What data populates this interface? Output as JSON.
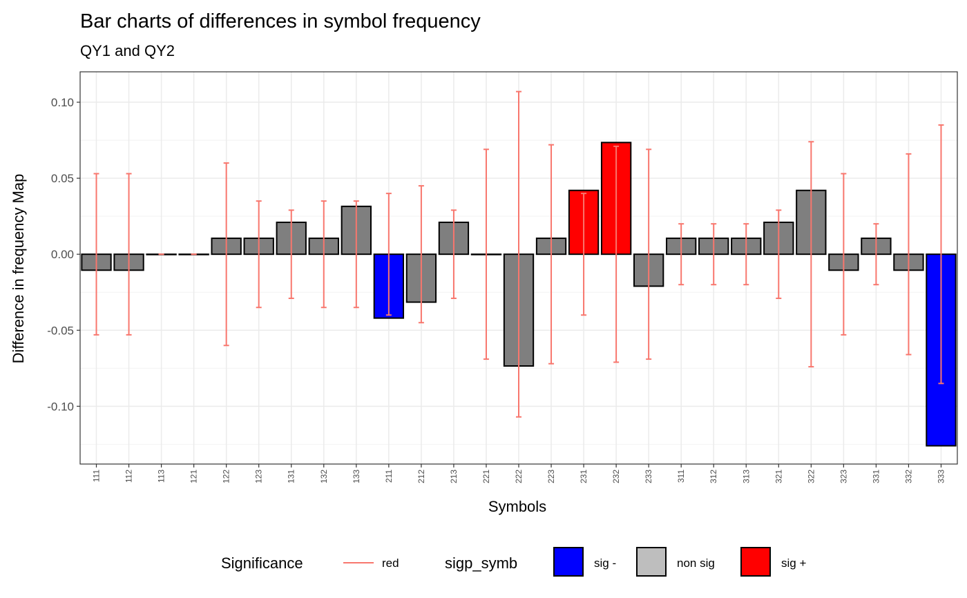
{
  "chart_data": {
    "type": "bar",
    "title": "Bar charts of differences in symbol frequency",
    "subtitle": "QY1 and QY2",
    "xlabel": "Symbols",
    "ylabel": "Difference in frequency Map",
    "ylim": [
      -0.138,
      0.12
    ],
    "yticks": [
      0.1,
      0.05,
      0.0,
      -0.05,
      -0.1
    ],
    "ytick_labels": [
      "0.10",
      "0.05",
      "0.00",
      "-0.05",
      "-0.10"
    ],
    "grid": true,
    "legend_position": "bottom",
    "categories": [
      "111",
      "112",
      "113",
      "121",
      "122",
      "123",
      "131",
      "132",
      "133",
      "211",
      "212",
      "213",
      "221",
      "222",
      "223",
      "231",
      "232",
      "233",
      "311",
      "312",
      "313",
      "321",
      "322",
      "323",
      "331",
      "332",
      "333"
    ],
    "values": [
      -0.0105,
      -0.0105,
      0.0,
      0.0,
      0.0105,
      0.0105,
      0.021,
      0.0105,
      0.0315,
      -0.042,
      -0.0315,
      0.021,
      0.0,
      -0.0735,
      0.0105,
      0.042,
      0.0735,
      -0.021,
      0.0105,
      0.0105,
      0.0105,
      0.021,
      0.042,
      -0.0105,
      0.0105,
      -0.0105,
      -0.126
    ],
    "error_half_width": [
      0.053,
      0.053,
      0.0,
      0.0,
      0.06,
      0.035,
      0.029,
      0.035,
      0.035,
      0.04,
      0.045,
      0.029,
      0.069,
      0.107,
      0.072,
      0.04,
      0.071,
      0.069,
      0.02,
      0.02,
      0.02,
      0.029,
      0.074,
      0.053,
      0.02,
      0.066,
      0.085
    ],
    "significance": [
      "non sig",
      "non sig",
      "non sig",
      "non sig",
      "non sig",
      "non sig",
      "non sig",
      "non sig",
      "non sig",
      "sig -",
      "non sig",
      "non sig",
      "non sig",
      "non sig",
      "non sig",
      "sig +",
      "sig +",
      "non sig",
      "non sig",
      "non sig",
      "non sig",
      "non sig",
      "non sig",
      "non sig",
      "non sig",
      "non sig",
      "sig -"
    ],
    "legend": {
      "significance_title": "Significance",
      "significance_label": "red",
      "fill_title": "sigp_symb",
      "fill_items": [
        {
          "label": "sig -",
          "color": "#0000ff"
        },
        {
          "label": "non sig",
          "color": "#bebebe"
        },
        {
          "label": "sig +",
          "color": "#ff0000"
        }
      ]
    },
    "colors": {
      "sig -": "#0000ff",
      "non sig": "#7f7f7f",
      "sig +": "#ff0000",
      "errorbar": "#f8766d"
    }
  }
}
